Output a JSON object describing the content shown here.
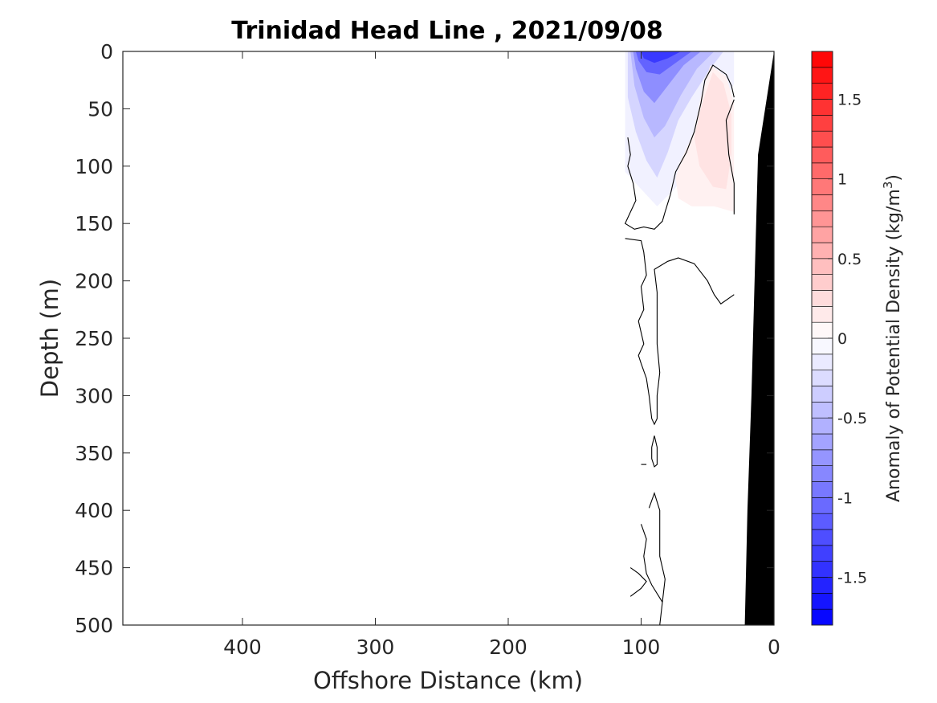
{
  "chart_data": {
    "type": "heatmap",
    "title": "Trinidad Head Line , 2021/09/08",
    "xlabel": "Offshore Distance (km)",
    "ylabel": "Depth (m)",
    "x_reversed": true,
    "y_reversed": true,
    "xlim": [
      490,
      0
    ],
    "ylim": [
      500,
      0
    ],
    "xticks": [
      400,
      300,
      200,
      100,
      0
    ],
    "yticks": [
      0,
      50,
      100,
      150,
      200,
      250,
      300,
      350,
      400,
      450,
      500
    ],
    "colorbar": {
      "label": "Anomaly of Potential Density (kg/m",
      "label_superscript": "3",
      "label_close": ")",
      "range": [
        -1.8,
        1.8
      ],
      "step": 0.1,
      "ticks": [
        -1.5,
        -1,
        -0.5,
        0,
        0.5,
        1,
        1.5
      ],
      "tick_labels": [
        "-1.5",
        "-1",
        "-0.5",
        "0",
        "0.5",
        "1",
        "1.5"
      ],
      "colormap": "blue-white-red",
      "negative_color": "#0000ff",
      "positive_color": "#ff0000"
    },
    "filled_regions": [
      {
        "value": -0.1,
        "points": [
          [
            112,
            0
          ],
          [
            30,
            0
          ],
          [
            30,
            28
          ],
          [
            58,
            95
          ],
          [
            75,
            120
          ],
          [
            88,
            135
          ],
          [
            100,
            120
          ],
          [
            112,
            105
          ]
        ]
      },
      {
        "value": -0.3,
        "points": [
          [
            110,
            0
          ],
          [
            38,
            0
          ],
          [
            48,
            15
          ],
          [
            62,
            40
          ],
          [
            72,
            60
          ],
          [
            80,
            88
          ],
          [
            88,
            110
          ],
          [
            96,
            95
          ],
          [
            104,
            70
          ],
          [
            110,
            40
          ]
        ]
      },
      {
        "value": -0.5,
        "points": [
          [
            108,
            0
          ],
          [
            45,
            0
          ],
          [
            58,
            15
          ],
          [
            70,
            38
          ],
          [
            82,
            65
          ],
          [
            90,
            75
          ],
          [
            98,
            58
          ],
          [
            105,
            30
          ]
        ]
      },
      {
        "value": -0.8,
        "points": [
          [
            106,
            0
          ],
          [
            55,
            0
          ],
          [
            68,
            12
          ],
          [
            80,
            30
          ],
          [
            90,
            45
          ],
          [
            98,
            35
          ],
          [
            104,
            15
          ]
        ]
      },
      {
        "value": -1.1,
        "points": [
          [
            104,
            0
          ],
          [
            62,
            0
          ],
          [
            74,
            10
          ],
          [
            86,
            20
          ],
          [
            96,
            18
          ],
          [
            102,
            8
          ]
        ]
      },
      {
        "value": -1.4,
        "points": [
          [
            100,
            0
          ],
          [
            70,
            0
          ],
          [
            80,
            6
          ],
          [
            90,
            10
          ],
          [
            98,
            6
          ]
        ]
      },
      {
        "value": 0.1,
        "points": [
          [
            48,
            12
          ],
          [
            36,
            22
          ],
          [
            30,
            45
          ],
          [
            30,
            140
          ],
          [
            45,
            135
          ],
          [
            62,
            135
          ],
          [
            72,
            128
          ],
          [
            74,
            110
          ],
          [
            70,
            95
          ],
          [
            60,
            70
          ],
          [
            55,
            40
          ]
        ]
      },
      {
        "value": 0.2,
        "points": [
          [
            46,
            18
          ],
          [
            38,
            28
          ],
          [
            32,
            55
          ],
          [
            32,
            90
          ],
          [
            36,
            120
          ],
          [
            46,
            118
          ],
          [
            56,
            100
          ],
          [
            60,
            75
          ],
          [
            54,
            45
          ]
        ]
      }
    ],
    "zero_contours": [
      [
        [
          110,
          75
        ],
        [
          108,
          90
        ],
        [
          110,
          100
        ],
        [
          106,
          115
        ],
        [
          104,
          130
        ],
        [
          108,
          140
        ],
        [
          112,
          150
        ],
        [
          105,
          155
        ],
        [
          98,
          153
        ],
        [
          90,
          155
        ],
        [
          84,
          148
        ],
        [
          82,
          140
        ],
        [
          78,
          125
        ],
        [
          74,
          105
        ],
        [
          66,
          88
        ],
        [
          60,
          70
        ],
        [
          55,
          45
        ],
        [
          52,
          25
        ],
        [
          46,
          12
        ],
        [
          36,
          20
        ],
        [
          32,
          30
        ],
        [
          30,
          40
        ]
      ],
      [
        [
          30,
          42
        ],
        [
          36,
          60
        ],
        [
          34,
          90
        ],
        [
          30,
          115
        ],
        [
          30,
          142
        ]
      ],
      [
        [
          112,
          163
        ],
        [
          100,
          165
        ],
        [
          98,
          175
        ],
        [
          96,
          195
        ],
        [
          100,
          205
        ],
        [
          98,
          225
        ],
        [
          102,
          235
        ],
        [
          100,
          245
        ],
        [
          98,
          255
        ],
        [
          102,
          265
        ],
        [
          100,
          272
        ],
        [
          96,
          285
        ],
        [
          94,
          300
        ],
        [
          92,
          320
        ],
        [
          90,
          325
        ],
        [
          88,
          320
        ],
        [
          88,
          300
        ],
        [
          86,
          280
        ],
        [
          88,
          255
        ],
        [
          88,
          230
        ],
        [
          88,
          210
        ],
        [
          90,
          190
        ],
        [
          80,
          183
        ],
        [
          72,
          180
        ],
        [
          60,
          185
        ],
        [
          50,
          200
        ],
        [
          45,
          212
        ],
        [
          40,
          220
        ],
        [
          30,
          212
        ]
      ],
      [
        [
          92,
          345
        ],
        [
          90,
          335
        ],
        [
          88,
          345
        ],
        [
          88,
          360
        ],
        [
          90,
          362
        ],
        [
          92,
          355
        ],
        [
          92,
          345
        ]
      ],
      [
        [
          100,
          360
        ],
        [
          96,
          360
        ]
      ],
      [
        [
          94,
          398
        ],
        [
          90,
          385
        ],
        [
          86,
          400
        ],
        [
          86,
          420
        ],
        [
          86,
          440
        ],
        [
          82,
          460
        ],
        [
          84,
          480
        ],
        [
          86,
          500
        ]
      ],
      [
        [
          100,
          412
        ],
        [
          96,
          425
        ],
        [
          98,
          440
        ],
        [
          96,
          455
        ],
        [
          92,
          465
        ],
        [
          84,
          480
        ]
      ],
      [
        [
          108,
          450
        ],
        [
          102,
          455
        ],
        [
          96,
          462
        ],
        [
          100,
          468
        ],
        [
          108,
          475
        ]
      ]
    ],
    "bathymetry": {
      "color": "#000000",
      "points": [
        [
          0,
          0
        ],
        [
          12,
          90
        ],
        [
          17,
          300
        ],
        [
          20,
          400
        ],
        [
          22,
          500
        ],
        [
          0,
          500
        ]
      ]
    },
    "white_gap": {
      "x_from": 30,
      "x_to": 0
    }
  }
}
